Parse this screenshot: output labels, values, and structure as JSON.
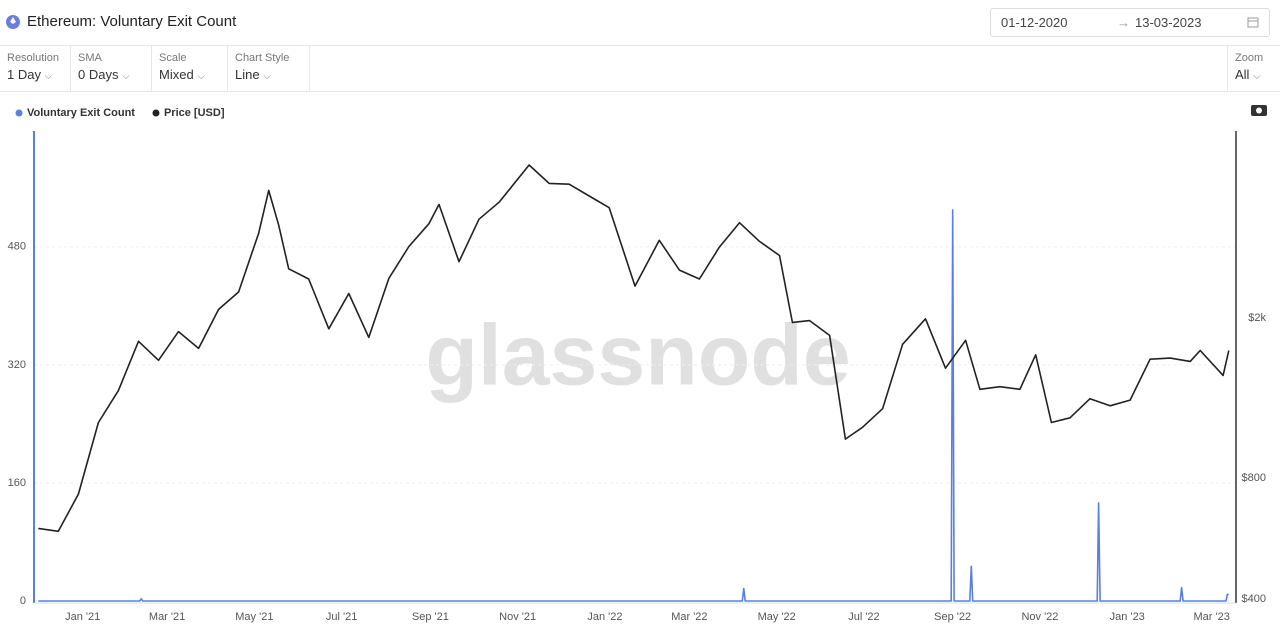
{
  "header": {
    "title": "Ethereum: Voluntary Exit Count",
    "date_from": "01-12-2020",
    "date_to": "13-03-2023"
  },
  "controls": [
    {
      "label": "Resolution",
      "value": "1 Day"
    },
    {
      "label": "SMA",
      "value": "0 Days"
    },
    {
      "label": "Scale",
      "value": "Mixed"
    },
    {
      "label": "Chart Style",
      "value": "Line"
    }
  ],
  "zoom": {
    "label": "Zoom",
    "value": "All"
  },
  "chart_data": {
    "type": "line",
    "watermark": "glassnode",
    "xlim": [
      "2020-11-28",
      "2023-03-18"
    ],
    "xticks": [
      {
        "value": "2021-01-01",
        "label": "Jan '21"
      },
      {
        "value": "2021-03-01",
        "label": "Mar '21"
      },
      {
        "value": "2021-05-01",
        "label": "May '21"
      },
      {
        "value": "2021-07-01",
        "label": "Jul '21"
      },
      {
        "value": "2021-09-01",
        "label": "Sep '21"
      },
      {
        "value": "2021-11-01",
        "label": "Nov '21"
      },
      {
        "value": "2022-01-01",
        "label": "Jan '22"
      },
      {
        "value": "2022-03-01",
        "label": "Mar '22"
      },
      {
        "value": "2022-05-01",
        "label": "May '22"
      },
      {
        "value": "2022-07-01",
        "label": "Jul '22"
      },
      {
        "value": "2022-09-01",
        "label": "Sep '22"
      },
      {
        "value": "2022-11-01",
        "label": "Nov '22"
      },
      {
        "value": "2023-01-01",
        "label": "Jan '23"
      },
      {
        "value": "2023-03-01",
        "label": "Mar '23"
      }
    ],
    "ylim": [
      0,
      637
    ],
    "yticks": [
      0,
      160,
      320,
      480
    ],
    "y2lim": [
      396,
      5830
    ],
    "y2scale": "log",
    "y2ticks": [
      {
        "value": 400,
        "label": "$400"
      },
      {
        "value": 800,
        "label": "$800"
      },
      {
        "value": 2000,
        "label": "$2k"
      }
    ],
    "grid": true,
    "series": [
      {
        "name": "Voluntary Exit Count",
        "color": "#5b7fe0",
        "x": [
          "2020-12-01",
          "2021-02-10",
          "2021-02-11",
          "2021-02-12",
          "2022-04-07",
          "2022-04-08",
          "2022-04-09",
          "2022-08-31",
          "2022-09-01",
          "2022-09-02",
          "2022-09-13",
          "2022-09-14",
          "2022-09-15",
          "2022-12-11",
          "2022-12-12",
          "2022-12-13",
          "2023-02-07",
          "2023-02-08",
          "2023-02-09",
          "2023-03-11",
          "2023-03-12",
          "2023-03-13"
        ],
        "values": [
          0,
          0,
          3,
          0,
          0,
          17,
          0,
          0,
          530,
          0,
          0,
          47,
          0,
          0,
          133,
          0,
          0,
          18,
          0,
          0,
          9,
          9
        ]
      },
      {
        "name": "Price [USD]",
        "color": "#222222",
        "axis": "y2",
        "x": [
          "2020-12-01",
          "2020-12-15",
          "2020-12-29",
          "2021-01-12",
          "2021-01-26",
          "2021-02-09",
          "2021-02-23",
          "2021-03-09",
          "2021-03-23",
          "2021-04-06",
          "2021-04-20",
          "2021-05-04",
          "2021-05-11",
          "2021-05-18",
          "2021-05-25",
          "2021-06-08",
          "2021-06-22",
          "2021-07-06",
          "2021-07-20",
          "2021-08-03",
          "2021-08-17",
          "2021-08-31",
          "2021-09-07",
          "2021-09-21",
          "2021-10-05",
          "2021-10-19",
          "2021-11-09",
          "2021-11-23",
          "2021-12-07",
          "2021-12-21",
          "2022-01-04",
          "2022-01-22",
          "2022-02-08",
          "2022-02-22",
          "2022-03-08",
          "2022-03-22",
          "2022-04-05",
          "2022-04-19",
          "2022-05-03",
          "2022-05-12",
          "2022-05-24",
          "2022-06-07",
          "2022-06-18",
          "2022-06-30",
          "2022-07-14",
          "2022-07-28",
          "2022-08-13",
          "2022-08-27",
          "2022-09-10",
          "2022-09-20",
          "2022-10-04",
          "2022-10-18",
          "2022-10-29",
          "2022-11-09",
          "2022-11-22",
          "2022-12-06",
          "2022-12-20",
          "2023-01-03",
          "2023-01-17",
          "2023-01-31",
          "2023-02-14",
          "2023-02-21",
          "2023-03-09",
          "2023-03-13"
        ],
        "values": [
          600,
          590,
          730,
          1100,
          1320,
          1750,
          1570,
          1850,
          1680,
          2100,
          2320,
          3250,
          4150,
          3400,
          2650,
          2500,
          1880,
          2300,
          1790,
          2510,
          3010,
          3430,
          3830,
          2760,
          3520,
          3880,
          4800,
          4320,
          4300,
          4020,
          3760,
          2400,
          3120,
          2630,
          2500,
          3000,
          3450,
          3100,
          2860,
          1950,
          1970,
          1810,
          1000,
          1070,
          1190,
          1720,
          1990,
          1500,
          1760,
          1330,
          1350,
          1330,
          1620,
          1100,
          1130,
          1260,
          1210,
          1250,
          1580,
          1590,
          1560,
          1660,
          1440,
          1660
        ]
      }
    ]
  }
}
